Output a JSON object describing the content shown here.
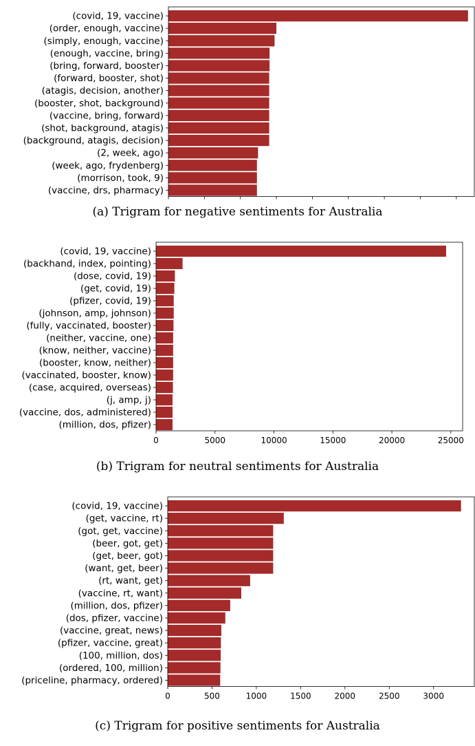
{
  "chart_data": [
    {
      "type": "bar",
      "orientation": "horizontal",
      "caption": "(a)  Trigram for negative sentiments for Australia",
      "color": "#a52a2a",
      "categories": [
        "(covid, 19, vaccine)",
        "(order, enough, vaccine)",
        "(simply, enough, vaccine)",
        "(enough, vaccine, bring)",
        "(bring, forward, booster)",
        "(forward, booster, shot)",
        "(atagis, decision, another)",
        "(booster, shot, background)",
        "(vaccine, bring, forward)",
        "(shot, background, atagis)",
        "(background, atagis, decision)",
        "(2, week, ago)",
        "(week, ago, frydenberg)",
        "(morrison, took, 9)",
        "(vaccine, drs, pharmacy)"
      ],
      "values": [
        1665,
        600,
        590,
        562,
        562,
        560,
        560,
        560,
        560,
        560,
        560,
        498,
        492,
        492,
        492
      ],
      "xticks": [
        0,
        200,
        400,
        600,
        800,
        1000,
        1200,
        1400,
        1600
      ],
      "xlim": [
        0,
        1700
      ]
    },
    {
      "type": "bar",
      "orientation": "horizontal",
      "caption": "(b)  Trigram for neutral sentiments for Australia",
      "color": "#a52a2a",
      "categories": [
        "(covid, 19, vaccine)",
        "(backhand, index, pointing)",
        "(dose, covid, 19)",
        "(get, covid, 19)",
        "(pfizer, covid, 19)",
        "(johnson, amp, johnson)",
        "(fully, vaccinated, booster)",
        "(neither, vaccine, one)",
        "(know, neither, vaccine)",
        "(booster, know, neither)",
        "(vaccinated, booster, know)",
        "(case, acquired, overseas)",
        "(j, amp, j)",
        "(vaccine, dos, administered)",
        "(million, dos, pfizer)"
      ],
      "values": [
        24600,
        2250,
        1600,
        1550,
        1500,
        1500,
        1480,
        1450,
        1450,
        1450,
        1450,
        1430,
        1400,
        1400,
        1400
      ],
      "xticks": [
        0,
        5000,
        10000,
        15000,
        20000,
        25000
      ],
      "xlim": [
        0,
        26000
      ]
    },
    {
      "type": "bar",
      "orientation": "horizontal",
      "caption": "(c)  Trigram for positive sentiments for Australia",
      "color": "#a52a2a",
      "categories": [
        "(covid, 19, vaccine)",
        "(get, vaccine, rt)",
        "(got, get, vaccine)",
        "(beer, got, get)",
        "(get, beer, got)",
        "(want, get, beer)",
        "(rt, want, get)",
        "(vaccine, rt, want)",
        "(million, dos, pfizer)",
        "(dos, pfizer, vaccine)",
        "(vaccine, great, news)",
        "(pfizer, vaccine, great)",
        "(100, million, dos)",
        "(ordered, 100, million)",
        "(priceline, pharmacy, ordered)"
      ],
      "values": [
        3310,
        1310,
        1190,
        1190,
        1190,
        1190,
        930,
        830,
        705,
        650,
        605,
        600,
        598,
        595,
        592
      ],
      "xticks": [
        0,
        500,
        1000,
        1500,
        2000,
        2500,
        3000
      ],
      "xlim": [
        0,
        3460
      ]
    }
  ]
}
